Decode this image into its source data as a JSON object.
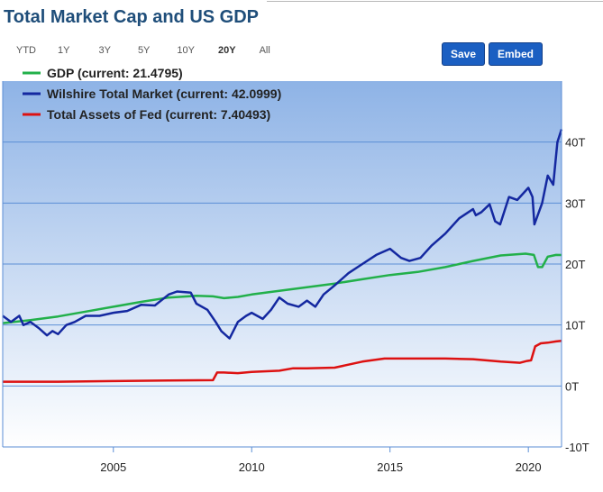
{
  "title": "Total Market Cap and US GDP",
  "ranges": [
    "YTD",
    "1Y",
    "3Y",
    "5Y",
    "10Y",
    "20Y",
    "All"
  ],
  "active_range": "20Y",
  "buttons": {
    "save": "Save",
    "embed": "Embed"
  },
  "colors": {
    "gdp": "#22b04a",
    "wilshire": "#1428a0",
    "fed": "#dd1111",
    "accent": "#1b5fc2"
  },
  "chart_data": {
    "type": "line",
    "title": "Total Market Cap and US GDP",
    "xlabel": "",
    "ylabel": "",
    "xlim": [
      2001.0,
      2021.2
    ],
    "ylim": [
      -10,
      50
    ],
    "x_ticks": [
      2005,
      2010,
      2015,
      2020
    ],
    "y_ticks": [
      40,
      30,
      20,
      10,
      0,
      -10
    ],
    "y_tick_labels": [
      "40T",
      "30T",
      "20T",
      "10T",
      "0T",
      "-10T"
    ],
    "grid": true,
    "legend_position": "top-left",
    "series": [
      {
        "name": "GDP (current: 21.4795)",
        "key": "gdp",
        "x": [
          2001.0,
          2002.0,
          2003.0,
          2004.0,
          2005.0,
          2006.0,
          2007.0,
          2008.0,
          2008.6,
          2009.0,
          2009.5,
          2010.0,
          2011.0,
          2012.0,
          2013.0,
          2014.0,
          2015.0,
          2016.0,
          2017.0,
          2018.0,
          2019.0,
          2019.9,
          2020.2,
          2020.35,
          2020.5,
          2020.7,
          2021.0,
          2021.2
        ],
        "y": [
          10.3,
          10.8,
          11.4,
          12.2,
          13.0,
          13.8,
          14.5,
          14.8,
          14.7,
          14.4,
          14.6,
          15.0,
          15.6,
          16.2,
          16.8,
          17.5,
          18.2,
          18.7,
          19.5,
          20.5,
          21.4,
          21.7,
          21.5,
          19.5,
          19.5,
          21.2,
          21.5,
          21.48
        ]
      },
      {
        "name": "Wilshire Total Market (current: 42.0999)",
        "key": "wilshire",
        "x": [
          2001.0,
          2001.3,
          2001.6,
          2001.75,
          2002.0,
          2002.3,
          2002.6,
          2002.8,
          2003.0,
          2003.3,
          2003.6,
          2004.0,
          2004.5,
          2005.0,
          2005.5,
          2006.0,
          2006.5,
          2007.0,
          2007.3,
          2007.8,
          2008.0,
          2008.4,
          2008.7,
          2008.9,
          2009.2,
          2009.5,
          2009.8,
          2010.0,
          2010.4,
          2010.7,
          2011.0,
          2011.3,
          2011.7,
          2012.0,
          2012.3,
          2012.6,
          2013.0,
          2013.5,
          2014.0,
          2014.5,
          2015.0,
          2015.4,
          2015.7,
          2016.1,
          2016.5,
          2017.0,
          2017.5,
          2018.0,
          2018.1,
          2018.3,
          2018.6,
          2018.8,
          2018.98,
          2019.3,
          2019.6,
          2020.0,
          2020.15,
          2020.22,
          2020.5,
          2020.7,
          2020.9,
          2021.05,
          2021.2
        ],
        "y": [
          11.5,
          10.5,
          11.5,
          10.0,
          10.5,
          9.5,
          8.3,
          9.0,
          8.5,
          10.0,
          10.5,
          11.5,
          11.5,
          12.0,
          12.3,
          13.3,
          13.2,
          15.0,
          15.5,
          15.3,
          13.5,
          12.5,
          10.5,
          9.0,
          7.8,
          10.5,
          11.5,
          12.0,
          11.0,
          12.5,
          14.5,
          13.5,
          13.0,
          14.0,
          13.0,
          15.0,
          16.5,
          18.5,
          20.0,
          21.5,
          22.5,
          21.0,
          20.5,
          21.0,
          23.0,
          25.0,
          27.5,
          29.0,
          28.0,
          28.5,
          29.8,
          27.0,
          26.5,
          31.0,
          30.5,
          32.5,
          31.0,
          26.5,
          30.0,
          34.5,
          33.0,
          40.0,
          42.1
        ]
      },
      {
        "name": "Total Assets of Fed (current: 7.40493)",
        "key": "fed",
        "x": [
          2001.0,
          2003.0,
          2005.0,
          2007.0,
          2008.6,
          2008.75,
          2009.0,
          2009.5,
          2010.0,
          2011.0,
          2011.5,
          2012.0,
          2013.0,
          2014.0,
          2014.8,
          2015.0,
          2016.0,
          2017.0,
          2018.0,
          2019.0,
          2019.7,
          2019.95,
          2020.1,
          2020.25,
          2020.45,
          2020.7,
          2021.0,
          2021.2
        ],
        "y": [
          0.7,
          0.7,
          0.8,
          0.9,
          0.95,
          2.2,
          2.2,
          2.1,
          2.3,
          2.5,
          2.9,
          2.9,
          3.0,
          4.0,
          4.5,
          4.5,
          4.5,
          4.5,
          4.4,
          4.0,
          3.8,
          4.1,
          4.2,
          6.5,
          7.0,
          7.1,
          7.3,
          7.4
        ]
      }
    ]
  }
}
